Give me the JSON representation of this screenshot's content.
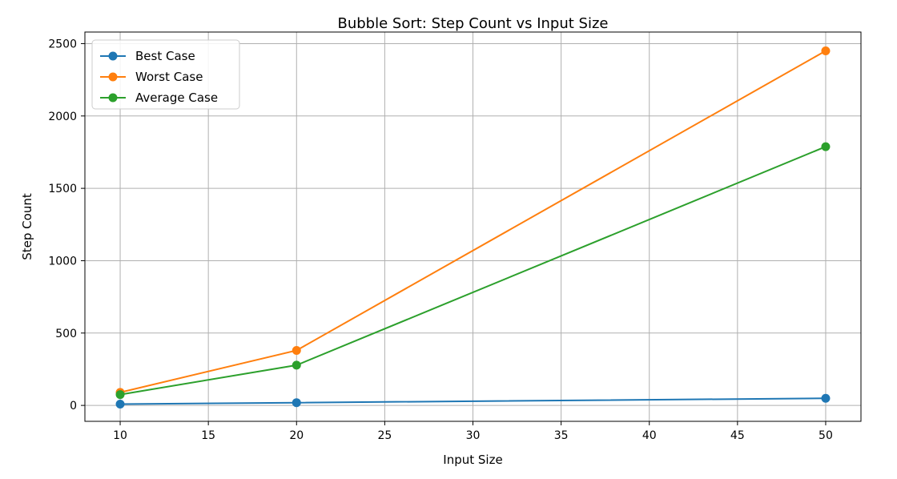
{
  "chart_data": {
    "type": "line",
    "title": "Bubble Sort:  Step Count vs Input Size",
    "xlabel": "Input Size",
    "ylabel": "Step Count",
    "x": [
      10,
      20,
      50
    ],
    "xlim": [
      8,
      52
    ],
    "ylim": [
      -110,
      2580
    ],
    "xticks": [
      10,
      15,
      20,
      25,
      30,
      35,
      40,
      45,
      50
    ],
    "yticks": [
      0,
      500,
      1000,
      1500,
      2000,
      2500
    ],
    "grid": true,
    "legend_position": "top-left",
    "series": [
      {
        "name": "Best Case",
        "values": [
          9,
          19,
          49
        ],
        "color": "#1f77b4"
      },
      {
        "name": "Worst Case",
        "values": [
          90,
          380,
          2450
        ],
        "color": "#ff7f0e"
      },
      {
        "name": "Average Case",
        "values": [
          75,
          278,
          1788
        ],
        "color": "#2ca02c"
      }
    ]
  }
}
